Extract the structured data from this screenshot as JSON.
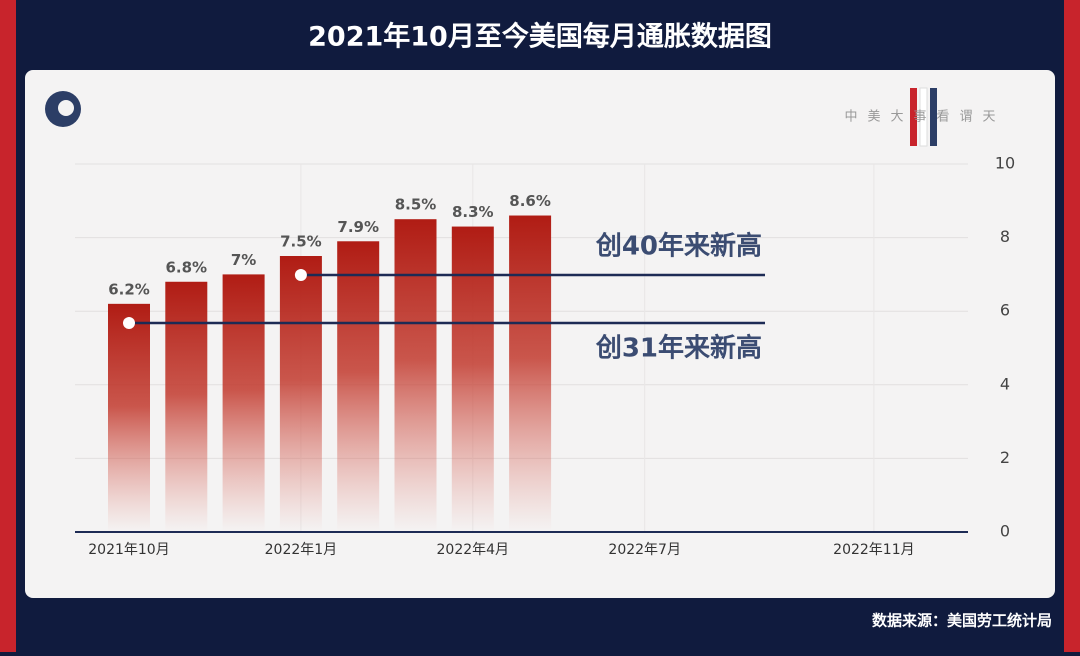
{
  "title": "2021年10月至今美国每月通胀数据图",
  "brand": "中美大事看谓天",
  "source": "数据来源：美国劳工统计局",
  "chart_data": {
    "type": "bar",
    "categories": [
      "2021年10月",
      null,
      null,
      "2022年1月",
      null,
      null,
      "2022年4月",
      null,
      null,
      "2022年7月",
      null,
      null,
      null,
      "2022年11月"
    ],
    "values": [
      6.2,
      6.8,
      7,
      7.5,
      7.9,
      8.5,
      8.3,
      8.6,
      null,
      null,
      null,
      null,
      null,
      null
    ],
    "value_labels": [
      "6.2%",
      "6.8%",
      "7%",
      "7.5%",
      "7.9%",
      "8.5%",
      "8.3%",
      "8.6%",
      null,
      null,
      null,
      null,
      null,
      null
    ],
    "color": "#b01c14",
    "ylim": [
      0,
      10
    ],
    "yticks": [
      0,
      2,
      4,
      6,
      8,
      10
    ],
    "grid": true,
    "annotations": [
      "创40年来新高",
      "创31年来新高"
    ]
  }
}
